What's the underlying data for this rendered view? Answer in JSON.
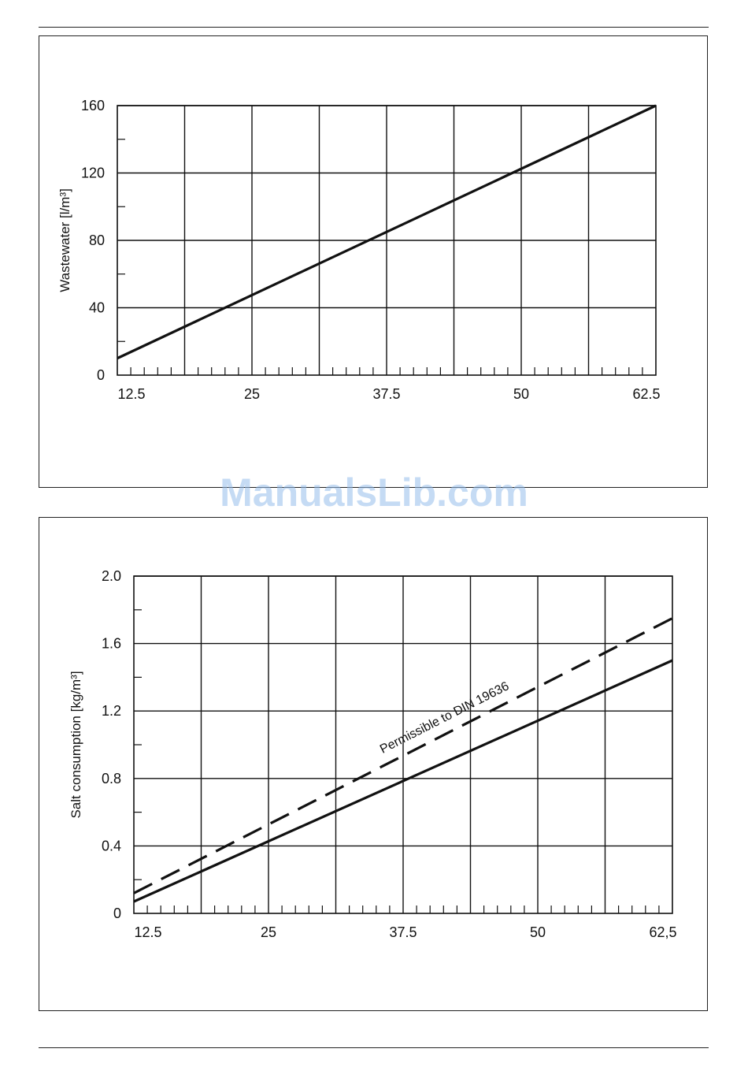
{
  "watermark": "ManualsLib.com",
  "chart_data": [
    {
      "type": "line",
      "title": "",
      "xlabel": "",
      "ylabel": "Wastewater [l/m³]",
      "x_ticks": [
        "12.5",
        "25",
        "37.5",
        "50",
        "62.5"
      ],
      "x_tick_values": [
        12.5,
        25,
        37.5,
        50,
        62.5
      ],
      "xlim": [
        12.5,
        62.5
      ],
      "y_ticks": [
        "0",
        "40",
        "80",
        "120",
        "160"
      ],
      "y_tick_values": [
        0,
        40,
        80,
        120,
        160
      ],
      "ylim": [
        0,
        160
      ],
      "grid": true,
      "series": [
        {
          "name": "",
          "style": "solid",
          "x": [
            12.5,
            62.5
          ],
          "y": [
            10,
            160
          ]
        }
      ],
      "annotations": []
    },
    {
      "type": "line",
      "title": "",
      "xlabel": "",
      "ylabel": "Salt consumption [kg/m³]",
      "x_ticks": [
        "12.5",
        "25",
        "37.5",
        "50",
        "62,5"
      ],
      "x_tick_values": [
        12.5,
        25,
        37.5,
        50,
        62.5
      ],
      "xlim": [
        12.5,
        62.5
      ],
      "y_ticks": [
        "0",
        "0.4",
        "0.8",
        "1.2",
        "1.6",
        "2.0"
      ],
      "y_tick_values": [
        0,
        0.4,
        0.8,
        1.2,
        1.6,
        2.0
      ],
      "ylim": [
        0,
        2.0
      ],
      "grid": true,
      "series": [
        {
          "name": "",
          "style": "solid",
          "x": [
            12.5,
            62.5
          ],
          "y": [
            0.07,
            1.5
          ]
        },
        {
          "name": "Permissible to DIN 19636",
          "style": "dashed",
          "x": [
            12.5,
            62.5
          ],
          "y": [
            0.12,
            1.75
          ]
        }
      ],
      "annotations": [
        {
          "text": "Permissible to DIN 19636",
          "series": 1
        }
      ]
    }
  ]
}
